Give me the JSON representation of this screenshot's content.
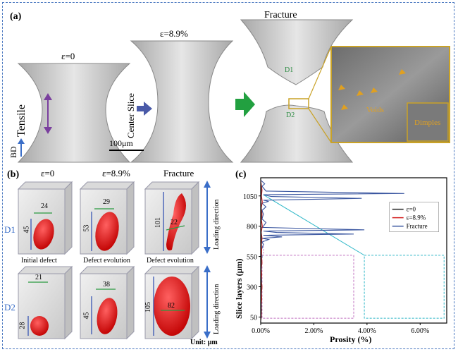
{
  "panel_a": {
    "label": "(a)",
    "eps0": "ε=0",
    "eps89": "ε=8.9%",
    "fracture": "Fracture",
    "tensile": "Tensile",
    "center_slice": "Center Slice",
    "bd": "BD",
    "scale": "100μm",
    "d1": "D1",
    "d2": "D2",
    "voids": "Voids",
    "dimples": "Dimples"
  },
  "panel_b": {
    "label": "(b)",
    "col_headers": [
      "ε=0",
      "ε=8.9%",
      "Fracture"
    ],
    "row_labels": [
      "D1",
      "D2"
    ],
    "captions": [
      "Initial defect",
      "Defect evolution",
      "Defect evolution"
    ],
    "d1_dims": [
      "24",
      "45",
      "29",
      "53",
      "101",
      "22"
    ],
    "d2_dims": [
      "21",
      "28",
      "38",
      "45",
      "105",
      "82"
    ],
    "loading_direction": "Loading direction",
    "unit": "Unit: μm"
  },
  "chart_data": {
    "label": "(c)",
    "type": "line",
    "xlabel": "Prosity (%)",
    "ylabel": "Slice layers (μm)",
    "xlim": [
      0,
      7
    ],
    "ylim": [
      0,
      1200
    ],
    "x_ticks": [
      "0.00%",
      "2.00%",
      "4.00%",
      "6.00%"
    ],
    "y_ticks": [
      "50",
      "300",
      "550",
      "800",
      "1050"
    ],
    "legend": [
      "ε=0",
      "ε=8.9%",
      "Fracture"
    ],
    "legend_position": "right",
    "colors": {
      "eps0": "#222222",
      "eps89": "#d42020",
      "fracture": "#3a56a0",
      "zoom": "#30b8c8",
      "inset": "#c070c0"
    },
    "series": [
      {
        "name": "Fracture",
        "points": [
          [
            0,
            1180
          ],
          [
            0.15,
            1150
          ],
          [
            0.05,
            1130
          ],
          [
            0.2,
            1090
          ],
          [
            5.4,
            1070
          ],
          [
            0.1,
            1060
          ],
          [
            0.4,
            1045
          ],
          [
            3.8,
            1030
          ],
          [
            0.1,
            1015
          ],
          [
            0.3,
            1005
          ],
          [
            0.05,
            990
          ],
          [
            0.2,
            960
          ],
          [
            0.05,
            930
          ],
          [
            0.1,
            900
          ],
          [
            0.05,
            860
          ],
          [
            0.2,
            830
          ],
          [
            0.1,
            800
          ],
          [
            0.05,
            790
          ],
          [
            3.9,
            770
          ],
          [
            0.1,
            760
          ],
          [
            0.6,
            748
          ],
          [
            3.5,
            735
          ],
          [
            0.1,
            725
          ],
          [
            0.8,
            712
          ],
          [
            0.05,
            700
          ],
          [
            0.3,
            690
          ],
          [
            0.05,
            670
          ],
          [
            0.1,
            650
          ],
          [
            0.02,
            600
          ],
          [
            0.05,
            550
          ],
          [
            0.02,
            500
          ],
          [
            0.03,
            450
          ],
          [
            0.02,
            400
          ],
          [
            0.04,
            350
          ],
          [
            0.02,
            300
          ],
          [
            0.03,
            250
          ],
          [
            0.02,
            200
          ],
          [
            0.03,
            150
          ],
          [
            0.02,
            100
          ],
          [
            0.03,
            50
          ],
          [
            0,
            20
          ]
        ]
      },
      {
        "name": "ε=8.9%",
        "points": [
          [
            0,
            1180
          ],
          [
            0.05,
            1100
          ],
          [
            0.03,
            1050
          ],
          [
            0.06,
            1000
          ],
          [
            0.02,
            950
          ],
          [
            0.05,
            900
          ],
          [
            0.03,
            850
          ],
          [
            0.06,
            800
          ],
          [
            0.02,
            750
          ],
          [
            0.05,
            700
          ],
          [
            0.03,
            650
          ],
          [
            0.04,
            600
          ],
          [
            0.03,
            550
          ],
          [
            0.05,
            500
          ],
          [
            0.02,
            450
          ],
          [
            0.04,
            400
          ],
          [
            0.02,
            350
          ],
          [
            0.05,
            300
          ],
          [
            0.03,
            250
          ],
          [
            0.04,
            200
          ],
          [
            0.02,
            150
          ],
          [
            0.03,
            100
          ],
          [
            0.02,
            50
          ],
          [
            0,
            20
          ]
        ]
      },
      {
        "name": "ε=0",
        "points": [
          [
            0,
            1180
          ],
          [
            0.02,
            1100
          ],
          [
            0.01,
            1000
          ],
          [
            0.02,
            900
          ],
          [
            0.01,
            800
          ],
          [
            0.02,
            700
          ],
          [
            0.01,
            600
          ],
          [
            0.02,
            500
          ],
          [
            0.01,
            400
          ],
          [
            0.02,
            300
          ],
          [
            0.01,
            200
          ],
          [
            0.02,
            100
          ],
          [
            0,
            20
          ]
        ]
      }
    ]
  }
}
